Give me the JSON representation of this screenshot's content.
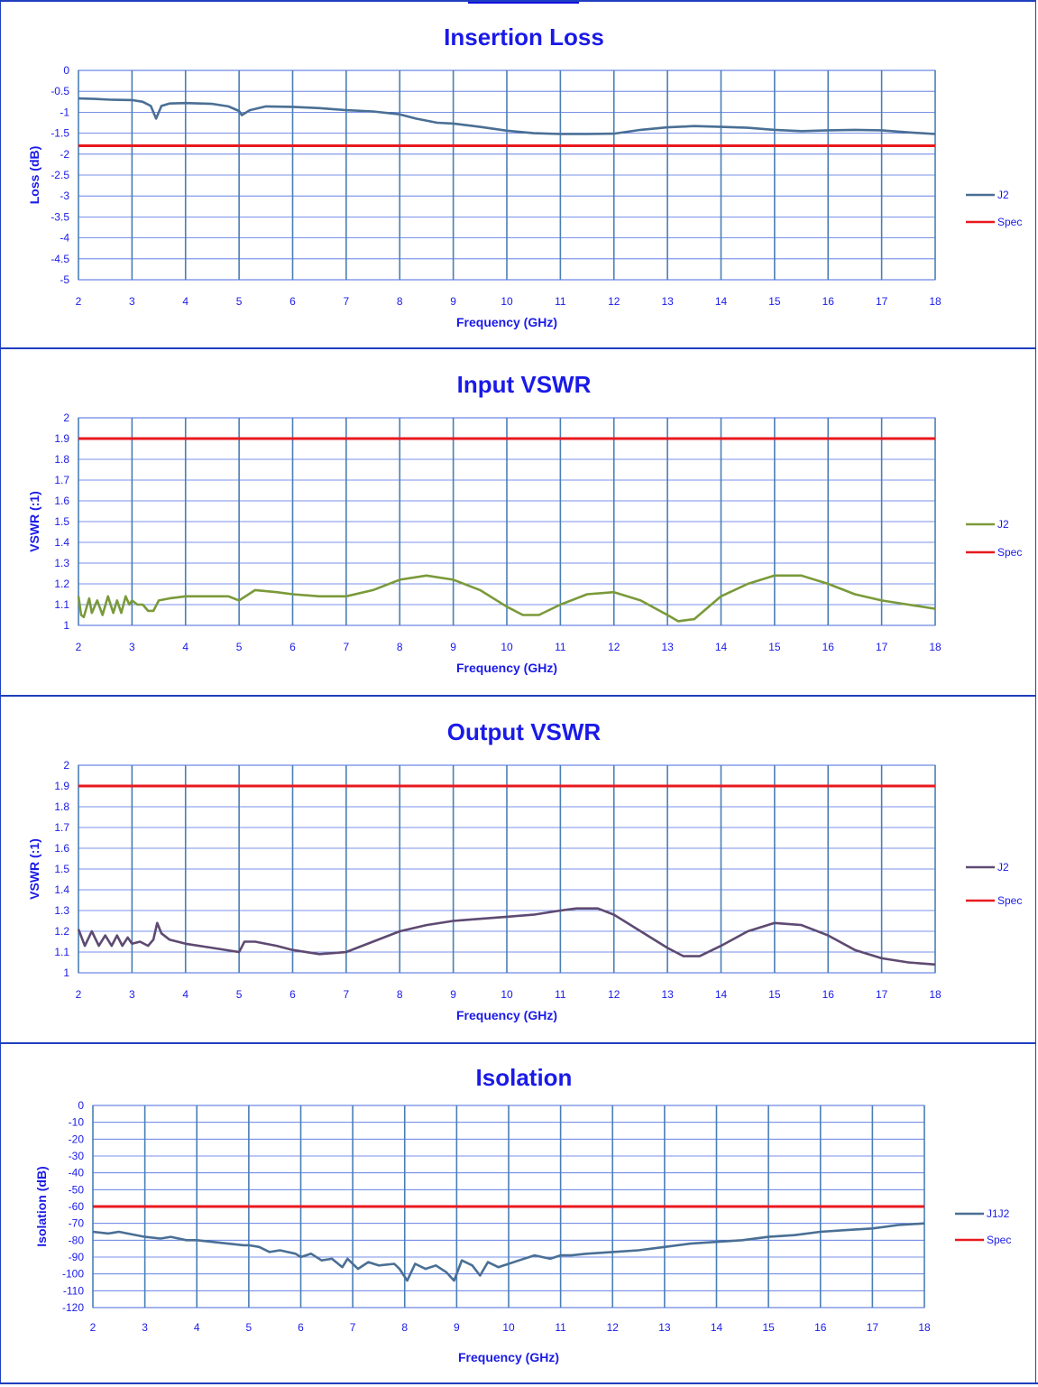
{
  "chart_data": [
    {
      "type": "line",
      "title": "Insertion Loss",
      "xlabel": "Frequency (GHz)",
      "ylabel": "Loss (dB)",
      "xlim": [
        2,
        18
      ],
      "ylim": [
        -5,
        0
      ],
      "x_ticks": [
        2,
        3,
        4,
        5,
        6,
        7,
        8,
        9,
        10,
        11,
        12,
        13,
        14,
        15,
        16,
        17,
        18
      ],
      "y_ticks": [
        0,
        -0.5,
        -1,
        -1.5,
        -2,
        -2.5,
        -3,
        -3.5,
        -4,
        -4.5,
        -5
      ],
      "grid": true,
      "legend_position": "right",
      "series": [
        {
          "name": "J2",
          "color": "#4a6f95",
          "x": [
            2,
            2.3,
            2.6,
            3,
            3.2,
            3.35,
            3.45,
            3.55,
            3.7,
            4,
            4.5,
            4.8,
            5,
            5.05,
            5.2,
            5.5,
            6,
            6.5,
            7,
            7.5,
            8,
            8.3,
            8.7,
            9,
            9.5,
            10,
            10.5,
            11,
            11.5,
            12,
            12.5,
            13,
            13.5,
            14,
            14.5,
            15,
            15.5,
            16,
            16.5,
            17,
            17.5,
            18
          ],
          "y": [
            -0.67,
            -0.68,
            -0.7,
            -0.71,
            -0.75,
            -0.85,
            -1.15,
            -0.85,
            -0.79,
            -0.78,
            -0.8,
            -0.86,
            -0.97,
            -1.07,
            -0.95,
            -0.86,
            -0.87,
            -0.9,
            -0.95,
            -0.98,
            -1.05,
            -1.15,
            -1.25,
            -1.27,
            -1.35,
            -1.44,
            -1.5,
            -1.52,
            -1.52,
            -1.51,
            -1.42,
            -1.36,
            -1.33,
            -1.35,
            -1.37,
            -1.42,
            -1.45,
            -1.43,
            -1.42,
            -1.43,
            -1.48,
            -1.52
          ]
        },
        {
          "name": "Spec",
          "color": "#e8191f",
          "x": [
            2,
            18
          ],
          "y": [
            -1.8,
            -1.8
          ]
        }
      ]
    },
    {
      "type": "line",
      "title": "Input VSWR",
      "xlabel": "Frequency (GHz)",
      "ylabel": "VSWR (:1)",
      "xlim": [
        2,
        18
      ],
      "ylim": [
        1,
        2
      ],
      "x_ticks": [
        2,
        3,
        4,
        5,
        6,
        7,
        8,
        9,
        10,
        11,
        12,
        13,
        14,
        15,
        16,
        17,
        18
      ],
      "y_ticks": [
        2,
        1.9,
        1.8,
        1.7,
        1.6,
        1.5,
        1.4,
        1.3,
        1.2,
        1.1,
        1
      ],
      "grid": true,
      "legend_position": "right",
      "series": [
        {
          "name": "J2",
          "color": "#7a9a3a",
          "x": [
            2,
            2.05,
            2.1,
            2.2,
            2.25,
            2.35,
            2.45,
            2.55,
            2.65,
            2.72,
            2.8,
            2.88,
            2.95,
            3,
            3.1,
            3.2,
            3.3,
            3.4,
            3.5,
            3.7,
            4,
            4.5,
            4.8,
            5,
            5.3,
            5.7,
            6,
            6.5,
            7,
            7.5,
            8,
            8.5,
            9,
            9.5,
            10,
            10.3,
            10.6,
            11,
            11.5,
            12,
            12.5,
            13,
            13.2,
            13.5,
            14,
            14.5,
            15,
            15.5,
            16,
            16.5,
            17,
            17.5,
            18
          ],
          "y": [
            1.14,
            1.05,
            1.04,
            1.13,
            1.06,
            1.12,
            1.05,
            1.14,
            1.06,
            1.12,
            1.06,
            1.14,
            1.1,
            1.12,
            1.1,
            1.1,
            1.07,
            1.07,
            1.12,
            1.13,
            1.14,
            1.14,
            1.14,
            1.12,
            1.17,
            1.16,
            1.15,
            1.14,
            1.14,
            1.17,
            1.22,
            1.24,
            1.22,
            1.17,
            1.09,
            1.05,
            1.05,
            1.1,
            1.15,
            1.16,
            1.12,
            1.05,
            1.02,
            1.03,
            1.14,
            1.2,
            1.24,
            1.24,
            1.2,
            1.15,
            1.12,
            1.1,
            1.08
          ]
        },
        {
          "name": "Spec",
          "color": "#e8191f",
          "x": [
            2,
            18
          ],
          "y": [
            1.9,
            1.9
          ]
        }
      ]
    },
    {
      "type": "line",
      "title": "Output VSWR",
      "xlabel": "Frequency (GHz)",
      "ylabel": "VSWR (:1)",
      "xlim": [
        2,
        18
      ],
      "ylim": [
        1,
        2
      ],
      "x_ticks": [
        2,
        3,
        4,
        5,
        6,
        7,
        8,
        9,
        10,
        11,
        12,
        13,
        14,
        15,
        16,
        17,
        18
      ],
      "y_ticks": [
        2,
        1.9,
        1.8,
        1.7,
        1.6,
        1.5,
        1.4,
        1.3,
        1.2,
        1.1,
        1
      ],
      "grid": true,
      "legend_position": "right",
      "series": [
        {
          "name": "J2",
          "color": "#5e4a72",
          "x": [
            2,
            2.12,
            2.25,
            2.38,
            2.5,
            2.62,
            2.72,
            2.82,
            2.92,
            3,
            3.15,
            3.3,
            3.4,
            3.47,
            3.55,
            3.7,
            4,
            4.5,
            5,
            5.1,
            5.3,
            5.7,
            6,
            6.5,
            7,
            7.5,
            8,
            8.5,
            9,
            9.5,
            10,
            10.5,
            11,
            11.3,
            11.7,
            12,
            12.5,
            13,
            13.3,
            13.6,
            14,
            14.5,
            15,
            15.5,
            16,
            16.5,
            17,
            17.5,
            18
          ],
          "y": [
            1.21,
            1.13,
            1.2,
            1.13,
            1.18,
            1.13,
            1.18,
            1.13,
            1.17,
            1.14,
            1.15,
            1.13,
            1.16,
            1.24,
            1.19,
            1.16,
            1.14,
            1.12,
            1.1,
            1.15,
            1.15,
            1.13,
            1.11,
            1.09,
            1.1,
            1.15,
            1.2,
            1.23,
            1.25,
            1.26,
            1.27,
            1.28,
            1.3,
            1.31,
            1.31,
            1.28,
            1.2,
            1.12,
            1.08,
            1.08,
            1.13,
            1.2,
            1.24,
            1.23,
            1.18,
            1.11,
            1.07,
            1.05,
            1.04
          ]
        },
        {
          "name": "Spec",
          "color": "#e8191f",
          "x": [
            2,
            18
          ],
          "y": [
            1.9,
            1.9
          ]
        }
      ]
    },
    {
      "type": "line",
      "title": "Isolation",
      "xlabel": "Frequency (GHz)",
      "ylabel": "Isolation (dB)",
      "xlim": [
        2,
        18
      ],
      "ylim": [
        -120,
        0
      ],
      "x_ticks": [
        2,
        3,
        4,
        5,
        6,
        7,
        8,
        9,
        10,
        11,
        12,
        13,
        14,
        15,
        16,
        17,
        18
      ],
      "y_ticks": [
        0,
        -10,
        -20,
        -30,
        -40,
        -50,
        -60,
        -70,
        -80,
        -90,
        -100,
        -110,
        -120
      ],
      "grid": true,
      "legend_position": "right",
      "series": [
        {
          "name": "J1J2",
          "color": "#4a6f95",
          "x": [
            2,
            2.3,
            2.5,
            3,
            3.3,
            3.5,
            3.8,
            4,
            4.3,
            4.6,
            4.9,
            5,
            5.2,
            5.4,
            5.6,
            5.9,
            6,
            6.2,
            6.4,
            6.6,
            6.8,
            6.9,
            7.1,
            7.3,
            7.5,
            7.8,
            7.9,
            8.05,
            8.2,
            8.4,
            8.6,
            8.8,
            8.95,
            9.1,
            9.3,
            9.45,
            9.6,
            9.8,
            10,
            10.2,
            10.5,
            10.8,
            11,
            11.2,
            11.5,
            12,
            12.5,
            13,
            13.5,
            14,
            14.5,
            15,
            15.5,
            16,
            16.5,
            17,
            17.5,
            18
          ],
          "y": [
            -75,
            -76,
            -75,
            -78,
            -79,
            -78,
            -80,
            -80,
            -81,
            -82,
            -83,
            -83,
            -84,
            -87,
            -86,
            -88,
            -90,
            -88,
            -92,
            -91,
            -96,
            -91,
            -97,
            -93,
            -95,
            -94,
            -97,
            -104,
            -94,
            -97,
            -95,
            -99,
            -104,
            -92,
            -95,
            -101,
            -93,
            -96,
            -94,
            -92,
            -89,
            -91,
            -89,
            -89,
            -88,
            -87,
            -86,
            -84,
            -82,
            -81,
            -80,
            -78,
            -77,
            -75,
            -74,
            -73,
            -71,
            -70
          ]
        },
        {
          "name": "Spec",
          "color": "#e8191f",
          "x": [
            2,
            18
          ],
          "y": [
            -60,
            -60
          ]
        }
      ]
    }
  ]
}
